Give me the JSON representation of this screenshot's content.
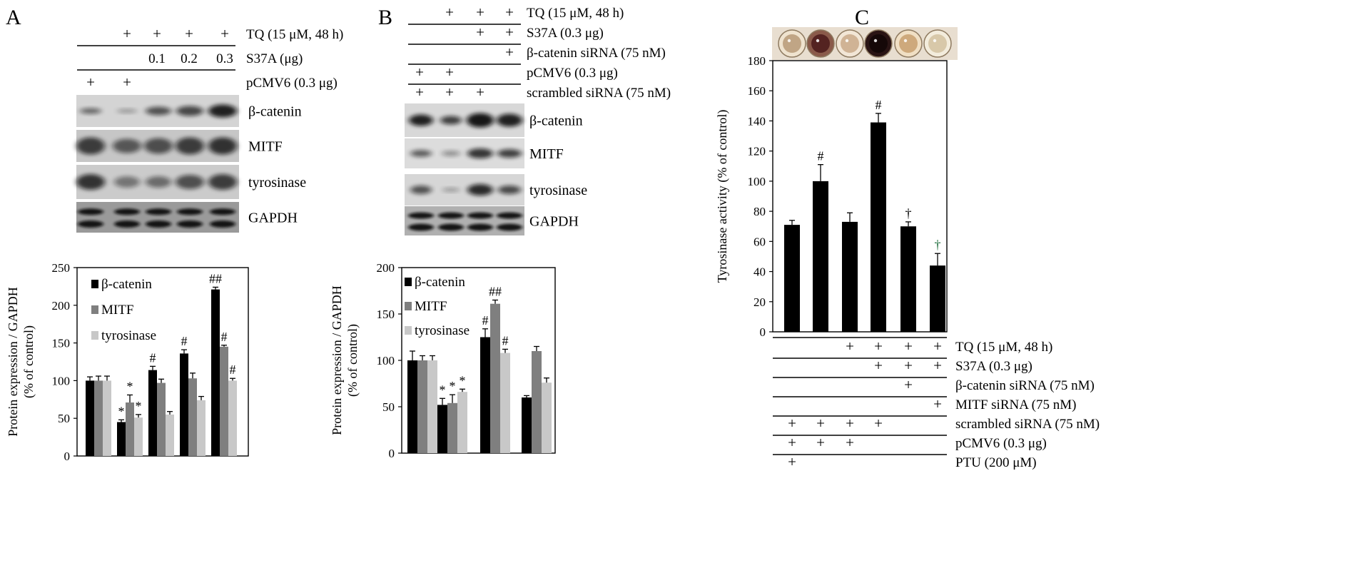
{
  "panels": [
    "A",
    "B",
    "C"
  ],
  "panelA": {
    "treatments": [
      {
        "label": "TQ (15 μM, 48 h)",
        "marks": [
          "",
          "+",
          "+",
          "+",
          "+"
        ]
      },
      {
        "label": "S37A (μg)",
        "marks": [
          "",
          "",
          "0.1",
          "0.2",
          "0.3"
        ]
      },
      {
        "label": "pCMV6 (0.3 μg)",
        "marks": [
          "+",
          "+",
          "",
          "",
          ""
        ]
      }
    ],
    "blots": [
      "β-catenin",
      "MITF",
      "tyrosinase",
      "GAPDH"
    ]
  },
  "panelB": {
    "treatments": [
      {
        "label": "TQ (15 μM, 48 h)",
        "marks": [
          "",
          "+",
          "+",
          "+"
        ]
      },
      {
        "label": "S37A (0.3 μg)",
        "marks": [
          "",
          "",
          "+",
          "+"
        ]
      },
      {
        "label": "β-catenin siRNA (75 nM)",
        "marks": [
          "",
          "",
          "",
          "+"
        ]
      },
      {
        "label": "pCMV6 (0.3 μg)",
        "marks": [
          "+",
          "+",
          "",
          ""
        ]
      },
      {
        "label": "scrambled siRNA (75 nM)",
        "marks": [
          "+",
          "+",
          "+",
          ""
        ]
      }
    ],
    "blots": [
      "β-catenin",
      "MITF",
      "tyrosinase",
      "GAPDH"
    ]
  },
  "panelC": {
    "treatments": [
      {
        "label": "TQ (15 μM, 48 h)",
        "marks": [
          "",
          "",
          "+",
          "+",
          "+",
          "+"
        ]
      },
      {
        "label": "S37A (0.3 μg)",
        "marks": [
          "",
          "",
          "",
          "+",
          "+",
          "+"
        ]
      },
      {
        "label": "β-catenin siRNA (75 nM)",
        "marks": [
          "",
          "",
          "",
          "",
          "+",
          ""
        ]
      },
      {
        "label": "MITF siRNA (75 nM)",
        "marks": [
          "",
          "",
          "",
          "",
          "",
          "+"
        ]
      },
      {
        "label": "scrambled siRNA (75 nM)",
        "marks": [
          "+",
          "+",
          "+",
          "+",
          "",
          ""
        ]
      },
      {
        "label": "pCMV6 (0.3 μg)",
        "marks": [
          "+",
          "+",
          "+",
          "",
          "",
          ""
        ]
      },
      {
        "label": "PTU (200 μM)",
        "marks": [
          "+",
          "",
          "",
          "",
          "",
          ""
        ]
      }
    ]
  },
  "colors": {
    "beta_catenin": "#000000",
    "mitf": "#7f7f7f",
    "tyrosinase": "#c8c8c8",
    "bar_c": "#000000",
    "dagger_green": "#1b6b3a"
  },
  "chart_data": [
    {
      "type": "bar",
      "ylabel": "Protein expression / GAPDH\n(% of control)",
      "ylim": [
        0,
        250
      ],
      "yticks": [
        0,
        50,
        100,
        150,
        200,
        250
      ],
      "grid": false,
      "legend": "top-left",
      "series": [
        {
          "name": "β-catenin",
          "values": [
            100,
            45,
            114,
            136,
            221
          ],
          "errors": [
            5,
            3,
            5,
            5,
            3
          ],
          "labels": [
            "",
            "*",
            "#",
            "#",
            "##"
          ]
        },
        {
          "name": "MITF",
          "values": [
            100,
            71,
            97,
            103,
            145
          ],
          "errors": [
            6,
            10,
            5,
            7,
            2
          ],
          "labels": [
            "",
            "*",
            "",
            "",
            "#"
          ]
        },
        {
          "name": "tyrosinase",
          "values": [
            100,
            51,
            55,
            74,
            100
          ],
          "errors": [
            6,
            4,
            4,
            5,
            3
          ],
          "labels": [
            "",
            "*",
            "",
            "",
            "#"
          ]
        }
      ]
    },
    {
      "type": "bar",
      "ylabel": "Protein expression / GAPDH\n(% of control)",
      "ylim": [
        0,
        200
      ],
      "yticks": [
        0,
        50,
        100,
        150,
        200
      ],
      "grid": false,
      "legend": "top-left",
      "series": [
        {
          "name": "β-catenin",
          "values": [
            100,
            52,
            125,
            60
          ],
          "errors": [
            10,
            7,
            9,
            2
          ],
          "labels": [
            "",
            "*",
            "#",
            ""
          ]
        },
        {
          "name": "MITF",
          "values": [
            100,
            54,
            161,
            110
          ],
          "errors": [
            5,
            9,
            4,
            5
          ],
          "labels": [
            "",
            "*",
            "##",
            ""
          ]
        },
        {
          "name": "tyrosinase",
          "values": [
            100,
            66,
            108,
            76
          ],
          "errors": [
            5,
            3,
            4,
            5
          ],
          "labels": [
            "",
            "*",
            "#",
            ""
          ]
        }
      ]
    },
    {
      "type": "bar",
      "ylabel": "Tyrosinase activity (% of control)",
      "ylim": [
        0,
        180
      ],
      "yticks": [
        0,
        20,
        40,
        60,
        80,
        100,
        120,
        140,
        160,
        180
      ],
      "grid": false,
      "series": [
        {
          "values": [
            71,
            100,
            73,
            139,
            70,
            44
          ],
          "errors": [
            3,
            11,
            6,
            6,
            3,
            8
          ],
          "labels": [
            "",
            "#",
            "",
            "#",
            "†",
            "†"
          ]
        }
      ]
    }
  ]
}
